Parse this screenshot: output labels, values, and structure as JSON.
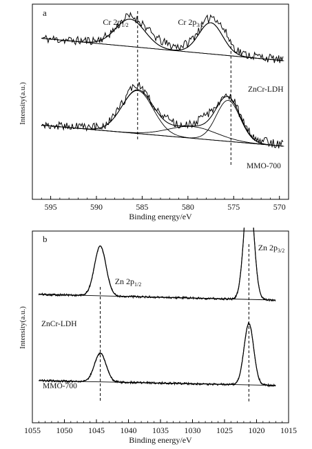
{
  "chart_data": [
    {
      "type": "line",
      "panel_label": "a",
      "xlabel": "Binding energy/eV",
      "ylabel": "Intensity(a.u.)",
      "xlim": [
        597,
        569
      ],
      "x_reversed": true,
      "xticks": [
        595,
        590,
        585,
        580,
        575,
        570
      ],
      "ylim": [
        0,
        1
      ],
      "series": [
        {
          "name": "ZnCr-LDH",
          "x": [
            596,
            594,
            592,
            590,
            589,
            588,
            587,
            586.5,
            586,
            585,
            584,
            583,
            582,
            581,
            580,
            579,
            578,
            577.5,
            577,
            576,
            575,
            574,
            573,
            572,
            571,
            570,
            569.5
          ],
          "y": [
            0.825,
            0.818,
            0.812,
            0.815,
            0.832,
            0.872,
            0.925,
            0.938,
            0.935,
            0.905,
            0.85,
            0.812,
            0.79,
            0.782,
            0.8,
            0.855,
            0.915,
            0.94,
            0.932,
            0.865,
            0.78,
            0.745,
            0.737,
            0.73,
            0.722,
            0.715,
            0.712
          ],
          "fit": [
            {
              "name": "Cr 2p1/2",
              "center": 586.3,
              "sigma": 1.6,
              "height": 0.14
            },
            {
              "name": "Cr 2p3/2",
              "center": 577.5,
              "sigma": 1.3,
              "height": 0.16
            }
          ],
          "baseline": [
            [
              596,
              0.825
            ],
            [
              569.5,
              0.71
            ]
          ]
        },
        {
          "name": "MMO-700",
          "x": [
            596,
            594,
            592,
            590,
            589,
            588,
            587,
            586,
            585.5,
            585,
            584,
            583,
            582,
            581,
            580,
            579,
            578,
            577,
            576,
            575.5,
            575,
            574,
            573,
            572,
            571,
            570,
            569.5
          ],
          "y": [
            0.38,
            0.376,
            0.371,
            0.37,
            0.382,
            0.425,
            0.505,
            0.578,
            0.59,
            0.57,
            0.5,
            0.44,
            0.402,
            0.378,
            0.382,
            0.4,
            0.428,
            0.468,
            0.52,
            0.535,
            0.51,
            0.4,
            0.33,
            0.3,
            0.29,
            0.282,
            0.278
          ],
          "fit": [
            {
              "name": "Cr 2p1/2",
              "center": 585.5,
              "sigma": 1.7,
              "height": 0.22
            },
            {
              "name": "satellite",
              "center": 579.5,
              "sigma": 2.6,
              "height": 0.06
            },
            {
              "name": "Cr 2p3/2",
              "center": 575.6,
              "sigma": 1.3,
              "height": 0.21
            }
          ],
          "baseline": [
            [
              596,
              0.38
            ],
            [
              569.5,
              0.272
            ]
          ]
        }
      ],
      "annotations": [
        {
          "text": "Cr 2p",
          "sub": "1/2",
          "x": 585.5
        },
        {
          "text": "Cr 2p",
          "sub": "3/2",
          "x": 575.3
        }
      ]
    },
    {
      "type": "line",
      "panel_label": "b",
      "xlabel": "Binding energy/eV",
      "ylabel": "Intensity(a.u.)",
      "xlim": [
        1055,
        1015
      ],
      "x_reversed": true,
      "xticks": [
        1055,
        1050,
        1045,
        1040,
        1035,
        1030,
        1025,
        1020,
        1015
      ],
      "ylim": [
        0,
        1
      ],
      "series": [
        {
          "name": "ZnCr-LDH",
          "peaks": [
            {
              "name": "Zn 2p1/2",
              "center": 1044.4,
              "sigma": 0.9,
              "height": 0.26
            },
            {
              "name": "Zn 2p3/2",
              "center": 1021.2,
              "sigma": 0.75,
              "height": 0.6
            }
          ],
          "baseline": [
            [
              1054,
              0.67
            ],
            [
              1017,
              0.64
            ]
          ]
        },
        {
          "name": "MMO-700",
          "peaks": [
            {
              "name": "Zn 2p1/2",
              "center": 1044.4,
              "sigma": 0.9,
              "height": 0.15
            },
            {
              "name": "Zn 2p3/2",
              "center": 1021.2,
              "sigma": 0.75,
              "height": 0.32
            }
          ],
          "baseline": [
            [
              1054,
              0.22
            ],
            [
              1017,
              0.195
            ]
          ]
        }
      ],
      "annotations": [
        {
          "text": "Zn 2p",
          "sub": "1/2",
          "x": 1044.4
        },
        {
          "text": "Zn 2p",
          "sub": "3/2",
          "x": 1021.2
        }
      ]
    }
  ]
}
